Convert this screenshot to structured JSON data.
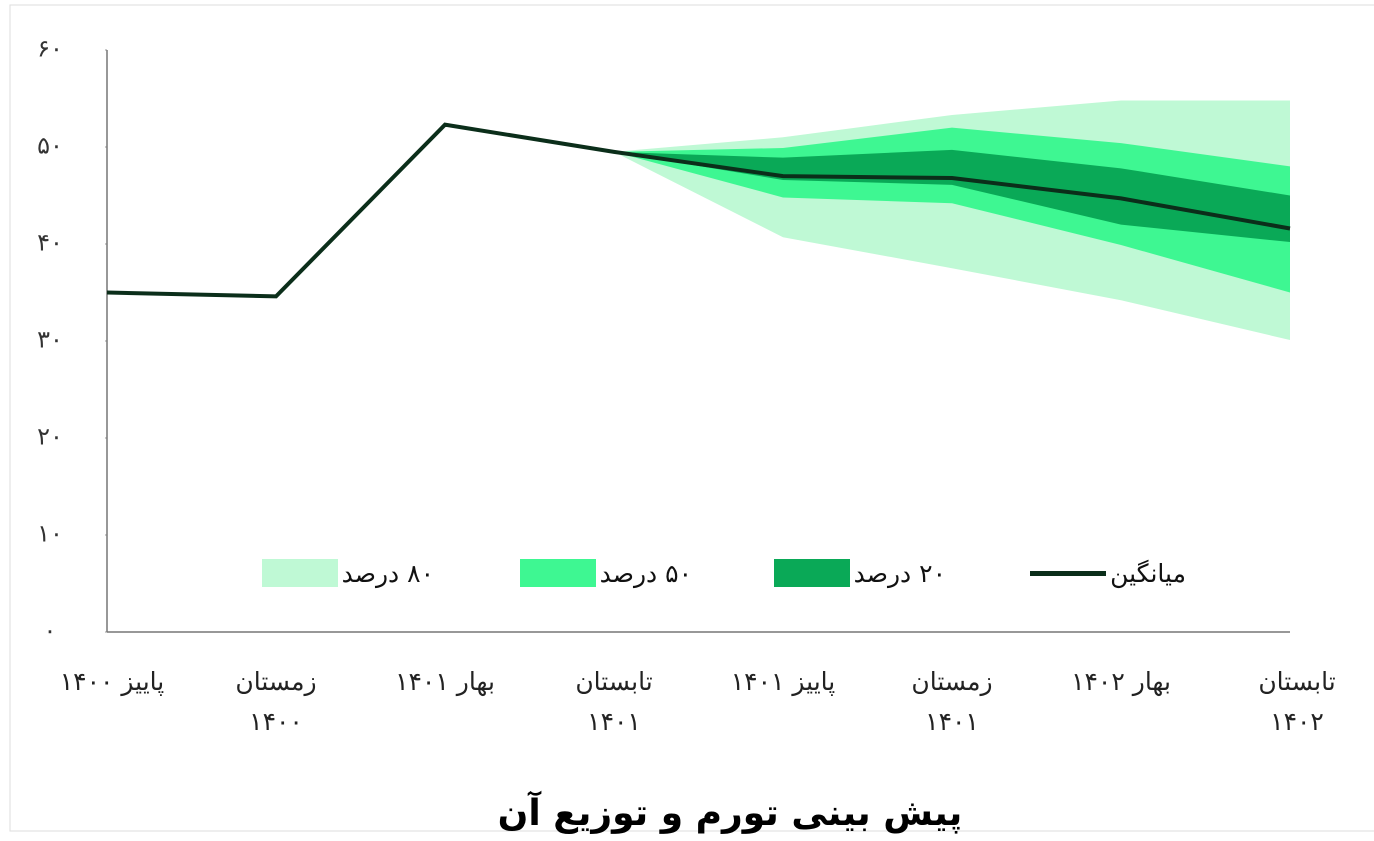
{
  "chart_data": {
    "type": "fan",
    "title": "پیش بینی تورم و توزیع آن",
    "categories": [
      "پاییز ۱۴۰۰",
      "زمستان ۱۴۰۰",
      "بهار ۱۴۰۱",
      "تابستان ۱۴۰۱",
      "پاییز ۱۴۰۱",
      "زمستان ۱۴۰۱",
      "بهار ۱۴۰۲",
      "تابستان ۱۴۰۲"
    ],
    "ylim": [
      0,
      60
    ],
    "yticks": [
      {
        "value": 0,
        "label": "۰"
      },
      {
        "value": 10,
        "label": "۱۰"
      },
      {
        "value": 20,
        "label": "۲۰"
      },
      {
        "value": 30,
        "label": "۳۰"
      },
      {
        "value": 40,
        "label": "۴۰"
      },
      {
        "value": 50,
        "label": "۵۰"
      },
      {
        "value": 60,
        "label": "۶۰"
      }
    ],
    "bands": [
      {
        "name": "۸۰ درصد",
        "color": "#bff9d5",
        "lower": [
          null,
          null,
          null,
          49.5,
          40.7,
          37.5,
          34.2,
          30.1
        ],
        "upper": [
          null,
          null,
          null,
          49.5,
          51.0,
          53.3,
          54.8,
          54.8
        ]
      },
      {
        "name": "۵۰ درصد",
        "color": "#3ef792",
        "lower": [
          null,
          null,
          null,
          49.5,
          44.8,
          44.2,
          39.9,
          35.0
        ],
        "upper": [
          null,
          null,
          null,
          49.5,
          49.9,
          52.0,
          50.4,
          48.0
        ]
      },
      {
        "name": "۲۰ درصد",
        "color": "#0aa957",
        "lower": [
          null,
          null,
          null,
          49.5,
          46.6,
          46.1,
          42.0,
          40.2
        ],
        "upper": [
          null,
          null,
          null,
          49.5,
          48.9,
          49.7,
          47.8,
          45.0
        ]
      }
    ],
    "series": [
      {
        "name": "میانگین",
        "color": "#0b2e1a",
        "values": [
          35.0,
          34.6,
          52.3,
          49.5,
          47.0,
          46.8,
          44.7,
          41.6
        ]
      }
    ]
  }
}
